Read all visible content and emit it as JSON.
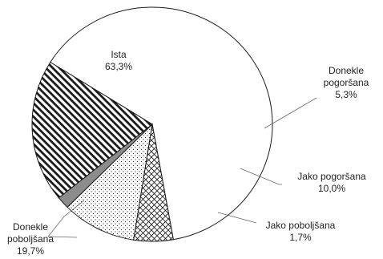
{
  "chart_data": {
    "type": "pie",
    "slices": [
      {
        "name": "Ista",
        "value": 63.3,
        "label_lines": [
          "Ista",
          "63,3%"
        ],
        "fill": "white"
      },
      {
        "name": "Donekle pogoršana",
        "value": 5.3,
        "label_lines": [
          "Donekle",
          "pogoršana",
          "5,3%"
        ],
        "fill": "crosshatch"
      },
      {
        "name": "Jako pogoršana",
        "value": 10.0,
        "label_lines": [
          "Jako pogoršana",
          "10,0%"
        ],
        "fill": "dots"
      },
      {
        "name": "Jako poboljšana",
        "value": 1.7,
        "label_lines": [
          "Jako poboljšana",
          "1,7%"
        ],
        "fill": "gray"
      },
      {
        "name": "Donekle poboljšana",
        "value": 19.7,
        "label_lines": [
          "Donekle",
          "poboljšana",
          "19,7%"
        ],
        "fill": "diagonal-stripes"
      }
    ],
    "colors": {
      "outline": "#1a1a1a",
      "gray_fill": "#8c8c8c",
      "text": "#222222"
    }
  }
}
